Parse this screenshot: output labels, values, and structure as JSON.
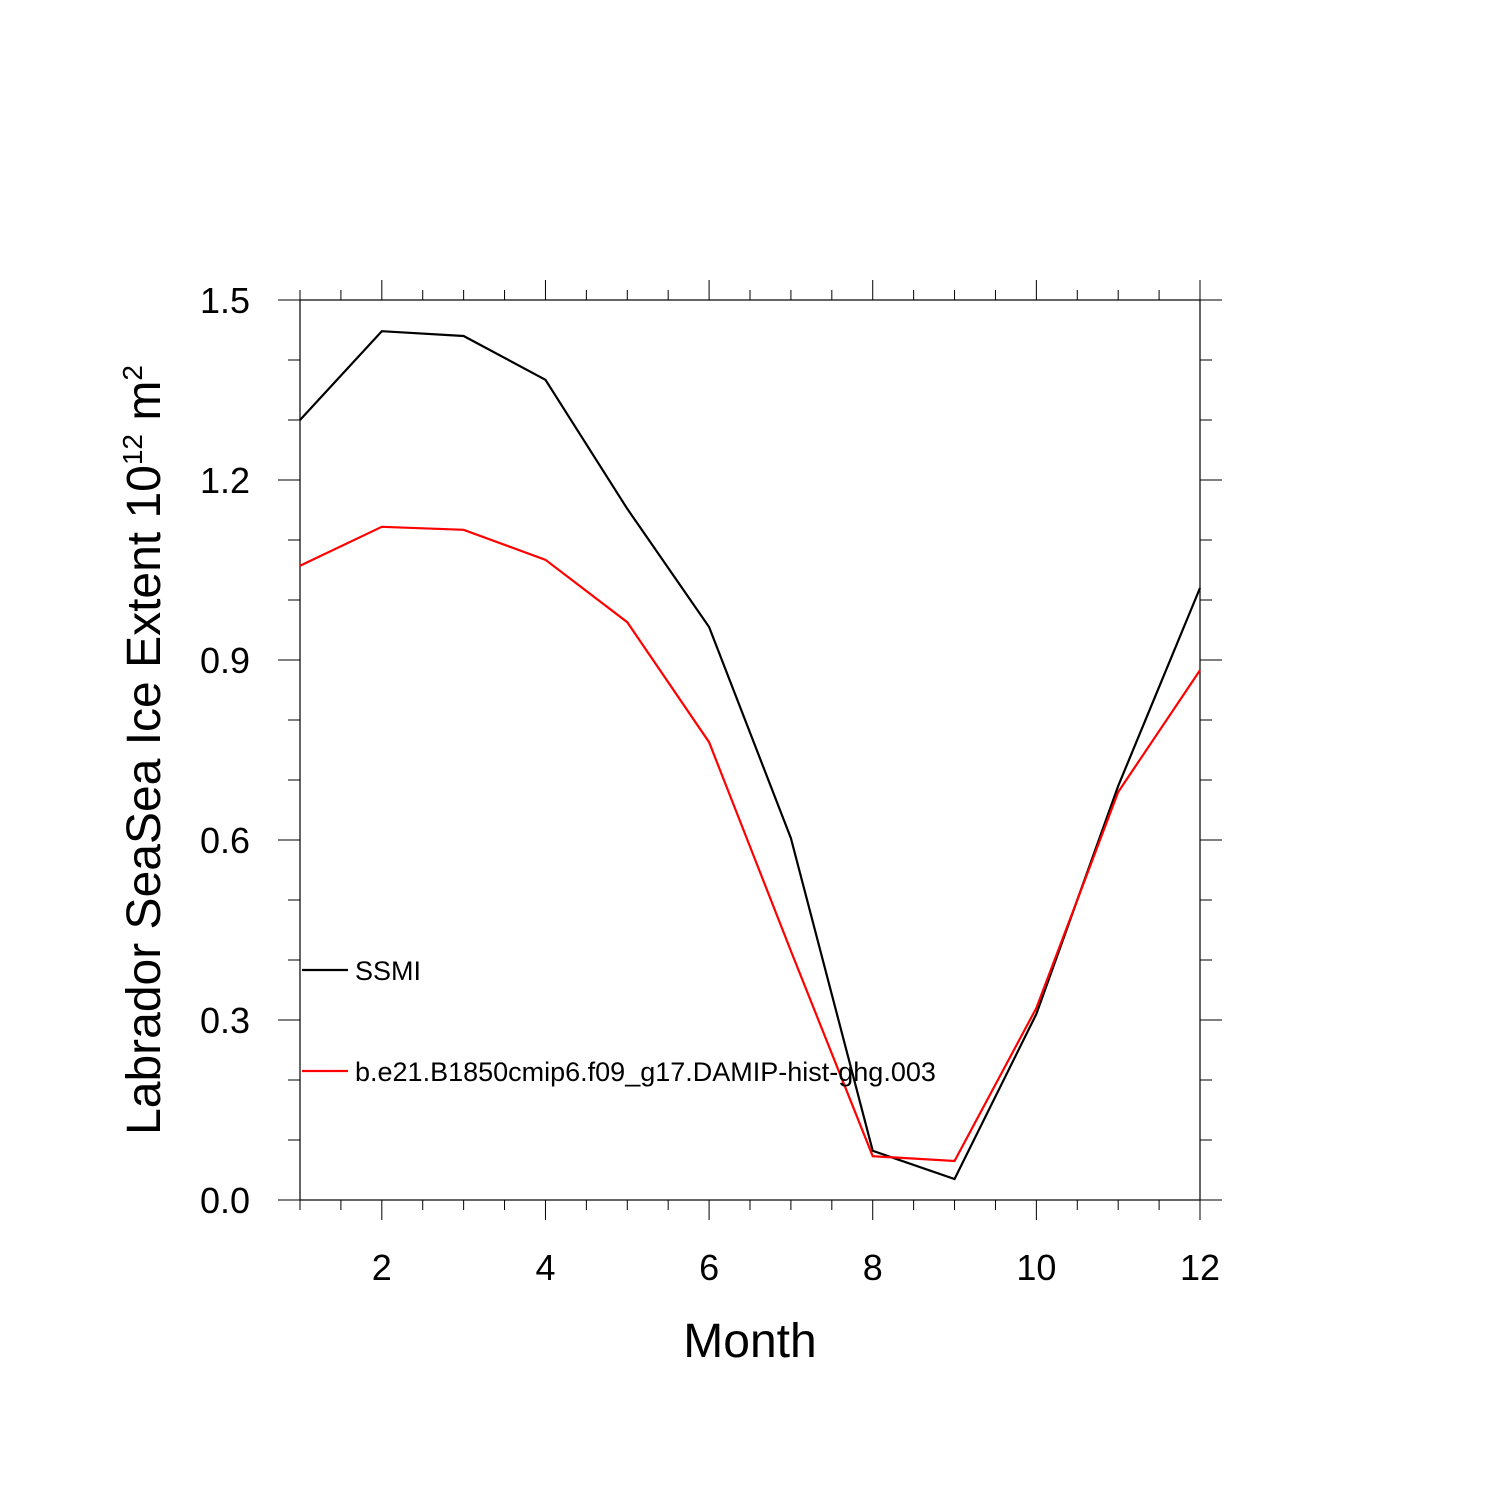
{
  "chart_data": {
    "type": "line",
    "title": "",
    "xlabel": "Month",
    "ylabel_main": "Labrador SeaSea Ice Extent 10",
    "ylabel_exp": "12",
    "ylabel_unit": " m",
    "ylabel_unit_exp": "2",
    "xlim": [
      1,
      12
    ],
    "ylim": [
      0,
      1.5
    ],
    "x_ticks": [
      2,
      4,
      6,
      8,
      10,
      12
    ],
    "x_tick_labels": [
      "2",
      "4",
      "6",
      "8",
      "10",
      "12"
    ],
    "y_ticks": [
      0,
      0.3,
      0.6,
      0.9,
      1.2,
      1.5
    ],
    "y_tick_labels": [
      "0.0",
      "0.3",
      "0.6",
      "0.9",
      "1.2",
      "1.5"
    ],
    "x": [
      1,
      2,
      3,
      4,
      5,
      6,
      7,
      8,
      9,
      10,
      11,
      12
    ],
    "series": [
      {
        "name": "SSMI",
        "color": "#000000",
        "values": [
          1.3,
          1.448,
          1.44,
          1.367,
          1.152,
          0.955,
          0.603,
          0.082,
          0.035,
          0.31,
          0.69,
          1.02
        ]
      },
      {
        "name": "b.e21.B1850cmip6.f09_g17.DAMIP-hist-ghg.003",
        "color": "#ff0000",
        "values": [
          1.057,
          1.122,
          1.117,
          1.067,
          0.963,
          0.763,
          0.415,
          0.073,
          0.065,
          0.32,
          0.68,
          0.883
        ]
      }
    ],
    "legend_position": "lower-left"
  }
}
